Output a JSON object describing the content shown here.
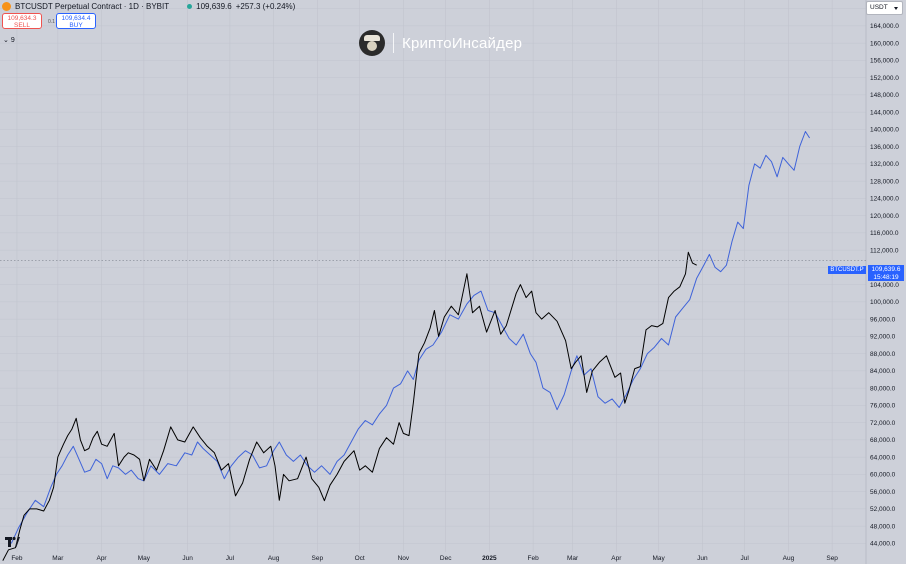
{
  "header": {
    "symbol": "BTCUSDT Perpetual Contract · 1D · BYBIT",
    "last_price": "109,639.6",
    "change": "+257.3 (+0.24%)",
    "sell_price": "109,634.3",
    "sell_label": "SELL",
    "buy_price": "109,634.4",
    "buy_label": "BUY",
    "spread": "0.1",
    "indicator_count": "9"
  },
  "watermark": {
    "text": "КриптоИнсайдер"
  },
  "currency": "USDT",
  "price_label": {
    "symbol": "BTCUSDT.P",
    "price": "109,639.6",
    "countdown": "15:48:19"
  },
  "colors": {
    "background": "#cdd0d9",
    "price_line": "#000000",
    "overlay_line": "#3f63d9",
    "accent": "#2962ff"
  },
  "icons": {
    "symbol": "bitcoin-icon",
    "status": "live-dot-icon",
    "logo": "tradingview-logo-icon"
  },
  "chart_data": {
    "type": "line",
    "y_axis": {
      "position": "right",
      "range": [
        42000,
        170000
      ],
      "ticks": [
        "168,000.0",
        "164,000.0",
        "160,000.0",
        "156,000.0",
        "152,000.0",
        "148,000.0",
        "144,000.0",
        "140,000.0",
        "136,000.0",
        "132,000.0",
        "128,000.0",
        "124,000.0",
        "120,000.0",
        "116,000.0",
        "112,000.0",
        "108,000.0",
        "104,000.0",
        "100,000.0",
        "96,000.0",
        "92,000.0",
        "88,000.0",
        "84,000.0",
        "80,000.0",
        "76,000.0",
        "72,000.0",
        "68,000.0",
        "64,000.0",
        "60,000.0",
        "56,000.0",
        "52,000.0",
        "48,000.0",
        "44,000.0"
      ]
    },
    "x_axis": {
      "range": [
        "2024-01-20",
        "2025-09-25"
      ],
      "ticks": [
        {
          "label": "Feb",
          "date": "2024-02-01"
        },
        {
          "label": "Mar",
          "date": "2024-03-01"
        },
        {
          "label": "Apr",
          "date": "2024-04-01"
        },
        {
          "label": "May",
          "date": "2024-05-01"
        },
        {
          "label": "Jun",
          "date": "2024-06-01"
        },
        {
          "label": "Jul",
          "date": "2024-07-01"
        },
        {
          "label": "Aug",
          "date": "2024-08-01"
        },
        {
          "label": "Sep",
          "date": "2024-09-01"
        },
        {
          "label": "Oct",
          "date": "2024-10-01"
        },
        {
          "label": "Nov",
          "date": "2024-11-01"
        },
        {
          "label": "Dec",
          "date": "2024-12-01"
        },
        {
          "label": "2025",
          "date": "2025-01-01"
        },
        {
          "label": "Feb",
          "date": "2025-02-01"
        },
        {
          "label": "Mar",
          "date": "2025-03-01"
        },
        {
          "label": "Apr",
          "date": "2025-04-01"
        },
        {
          "label": "May",
          "date": "2025-05-01"
        },
        {
          "label": "Jun",
          "date": "2025-06-01"
        },
        {
          "label": "Jul",
          "date": "2025-07-01"
        },
        {
          "label": "Aug",
          "date": "2025-08-01"
        },
        {
          "label": "Sep",
          "date": "2025-09-01"
        }
      ]
    },
    "grid": true,
    "crosshair_value": 109639.6,
    "series": [
      {
        "color": "#000000",
        "points": [
          [
            "2024-01-22",
            40000
          ],
          [
            "2024-01-26",
            42500
          ],
          [
            "2024-01-31",
            43000
          ],
          [
            "2024-02-03",
            47000
          ],
          [
            "2024-02-06",
            50500
          ],
          [
            "2024-02-10",
            52000
          ],
          [
            "2024-02-15",
            52000
          ],
          [
            "2024-02-20",
            51500
          ],
          [
            "2024-02-24",
            54000
          ],
          [
            "2024-02-27",
            57000
          ],
          [
            "2024-03-01",
            64000
          ],
          [
            "2024-03-05",
            67000
          ],
          [
            "2024-03-08",
            69000
          ],
          [
            "2024-03-11",
            70500
          ],
          [
            "2024-03-14",
            73000
          ],
          [
            "2024-03-17",
            68000
          ],
          [
            "2024-03-20",
            65500
          ],
          [
            "2024-03-23",
            66000
          ],
          [
            "2024-03-26",
            68500
          ],
          [
            "2024-03-29",
            70000
          ],
          [
            "2024-04-01",
            67000
          ],
          [
            "2024-04-05",
            66500
          ],
          [
            "2024-04-10",
            69500
          ],
          [
            "2024-04-13",
            62000
          ],
          [
            "2024-04-17",
            64000
          ],
          [
            "2024-04-20",
            65000
          ],
          [
            "2024-04-24",
            64500
          ],
          [
            "2024-04-28",
            63500
          ],
          [
            "2024-05-01",
            58500
          ],
          [
            "2024-05-05",
            63500
          ],
          [
            "2024-05-10",
            61000
          ],
          [
            "2024-05-15",
            65500
          ],
          [
            "2024-05-20",
            71000
          ],
          [
            "2024-05-25",
            68000
          ],
          [
            "2024-05-30",
            67500
          ],
          [
            "2024-06-05",
            71000
          ],
          [
            "2024-06-10",
            68500
          ],
          [
            "2024-06-15",
            66500
          ],
          [
            "2024-06-20",
            65000
          ],
          [
            "2024-06-25",
            61000
          ],
          [
            "2024-06-30",
            62500
          ],
          [
            "2024-07-05",
            55000
          ],
          [
            "2024-07-10",
            58000
          ],
          [
            "2024-07-15",
            63500
          ],
          [
            "2024-07-20",
            67500
          ],
          [
            "2024-07-25",
            65000
          ],
          [
            "2024-07-30",
            66500
          ],
          [
            "2024-08-02",
            62000
          ],
          [
            "2024-08-05",
            54000
          ],
          [
            "2024-08-08",
            60000
          ],
          [
            "2024-08-12",
            58500
          ],
          [
            "2024-08-18",
            59000
          ],
          [
            "2024-08-24",
            64000
          ],
          [
            "2024-08-28",
            59000
          ],
          [
            "2024-09-02",
            57000
          ],
          [
            "2024-09-06",
            53900
          ],
          [
            "2024-09-10",
            57500
          ],
          [
            "2024-09-15",
            60000
          ],
          [
            "2024-09-20",
            63000
          ],
          [
            "2024-09-27",
            65500
          ],
          [
            "2024-10-01",
            61000
          ],
          [
            "2024-10-05",
            62000
          ],
          [
            "2024-10-10",
            60500
          ],
          [
            "2024-10-15",
            66000
          ],
          [
            "2024-10-20",
            68500
          ],
          [
            "2024-10-25",
            67000
          ],
          [
            "2024-10-29",
            72000
          ],
          [
            "2024-11-01",
            69500
          ],
          [
            "2024-11-05",
            69000
          ],
          [
            "2024-11-08",
            76500
          ],
          [
            "2024-11-12",
            88000
          ],
          [
            "2024-11-16",
            90500
          ],
          [
            "2024-11-20",
            94000
          ],
          [
            "2024-11-23",
            98000
          ],
          [
            "2024-11-26",
            92000
          ],
          [
            "2024-11-30",
            96500
          ],
          [
            "2024-12-05",
            99000
          ],
          [
            "2024-12-10",
            97000
          ],
          [
            "2024-12-16",
            106500
          ],
          [
            "2024-12-20",
            97500
          ],
          [
            "2024-12-25",
            99000
          ],
          [
            "2024-12-30",
            93000
          ],
          [
            "2025-01-05",
            98000
          ],
          [
            "2025-01-09",
            92500
          ],
          [
            "2025-01-13",
            94500
          ],
          [
            "2025-01-20",
            102000
          ],
          [
            "2025-01-23",
            104000
          ],
          [
            "2025-01-27",
            101000
          ],
          [
            "2025-01-31",
            102500
          ],
          [
            "2025-02-03",
            97500
          ],
          [
            "2025-02-07",
            96000
          ],
          [
            "2025-02-12",
            97500
          ],
          [
            "2025-02-18",
            95500
          ],
          [
            "2025-02-24",
            91000
          ],
          [
            "2025-02-28",
            84500
          ],
          [
            "2025-03-03",
            86000
          ],
          [
            "2025-03-07",
            87500
          ],
          [
            "2025-03-11",
            79000
          ],
          [
            "2025-03-15",
            84000
          ],
          [
            "2025-03-20",
            86000
          ],
          [
            "2025-03-25",
            87500
          ],
          [
            "2025-03-31",
            82500
          ],
          [
            "2025-04-04",
            83500
          ],
          [
            "2025-04-07",
            76500
          ],
          [
            "2025-04-10",
            79500
          ],
          [
            "2025-04-14",
            84500
          ],
          [
            "2025-04-18",
            85000
          ],
          [
            "2025-04-22",
            93500
          ],
          [
            "2025-04-26",
            94500
          ],
          [
            "2025-04-30",
            94200
          ],
          [
            "2025-05-04",
            95000
          ],
          [
            "2025-05-08",
            101000
          ],
          [
            "2025-05-12",
            102500
          ],
          [
            "2025-05-16",
            103500
          ],
          [
            "2025-05-20",
            106500
          ],
          [
            "2025-05-22",
            111500
          ],
          [
            "2025-05-25",
            109000
          ],
          [
            "2025-05-28",
            108500
          ]
        ]
      },
      {
        "color": "#3f63d9",
        "points": [
          [
            "2024-01-28",
            44000
          ],
          [
            "2024-02-02",
            47500
          ],
          [
            "2024-02-08",
            51000
          ],
          [
            "2024-02-14",
            54000
          ],
          [
            "2024-02-20",
            52500
          ],
          [
            "2024-02-25",
            57000
          ],
          [
            "2024-02-29",
            60000
          ],
          [
            "2024-03-04",
            62000
          ],
          [
            "2024-03-08",
            64500
          ],
          [
            "2024-03-12",
            66500
          ],
          [
            "2024-03-16",
            63500
          ],
          [
            "2024-03-20",
            60500
          ],
          [
            "2024-03-24",
            61000
          ],
          [
            "2024-03-28",
            63500
          ],
          [
            "2024-04-01",
            62500
          ],
          [
            "2024-04-05",
            59000
          ],
          [
            "2024-04-09",
            62000
          ],
          [
            "2024-04-13",
            61500
          ],
          [
            "2024-04-18",
            60000
          ],
          [
            "2024-04-22",
            61000
          ],
          [
            "2024-04-27",
            59000
          ],
          [
            "2024-05-01",
            58500
          ],
          [
            "2024-05-06",
            62000
          ],
          [
            "2024-05-12",
            60000
          ],
          [
            "2024-05-18",
            62500
          ],
          [
            "2024-05-24",
            62000
          ],
          [
            "2024-05-30",
            65000
          ],
          [
            "2024-06-04",
            64500
          ],
          [
            "2024-06-08",
            67500
          ],
          [
            "2024-06-12",
            66000
          ],
          [
            "2024-06-17",
            64500
          ],
          [
            "2024-06-22",
            63000
          ],
          [
            "2024-06-27",
            59000
          ],
          [
            "2024-07-02",
            62000
          ],
          [
            "2024-07-07",
            64000
          ],
          [
            "2024-07-12",
            65500
          ],
          [
            "2024-07-17",
            64500
          ],
          [
            "2024-07-22",
            61500
          ],
          [
            "2024-07-27",
            62000
          ],
          [
            "2024-08-01",
            65500
          ],
          [
            "2024-08-05",
            67500
          ],
          [
            "2024-08-10",
            64500
          ],
          [
            "2024-08-15",
            63000
          ],
          [
            "2024-08-20",
            64500
          ],
          [
            "2024-08-25",
            62000
          ],
          [
            "2024-08-30",
            60500
          ],
          [
            "2024-09-04",
            62000
          ],
          [
            "2024-09-10",
            60000
          ],
          [
            "2024-09-15",
            63000
          ],
          [
            "2024-09-20",
            64500
          ],
          [
            "2024-09-25",
            67500
          ],
          [
            "2024-09-30",
            70500
          ],
          [
            "2024-10-05",
            72500
          ],
          [
            "2024-10-10",
            71500
          ],
          [
            "2024-10-15",
            74000
          ],
          [
            "2024-10-20",
            76000
          ],
          [
            "2024-10-25",
            80000
          ],
          [
            "2024-10-30",
            81000
          ],
          [
            "2024-11-04",
            84000
          ],
          [
            "2024-11-08",
            82000
          ],
          [
            "2024-11-12",
            86500
          ],
          [
            "2024-11-17",
            89000
          ],
          [
            "2024-11-22",
            90000
          ],
          [
            "2024-11-28",
            93000
          ],
          [
            "2024-12-04",
            97000
          ],
          [
            "2024-12-10",
            96000
          ],
          [
            "2024-12-16",
            99500
          ],
          [
            "2024-12-21",
            101500
          ],
          [
            "2024-12-26",
            102500
          ],
          [
            "2024-12-31",
            98000
          ],
          [
            "2025-01-05",
            97500
          ],
          [
            "2025-01-10",
            94500
          ],
          [
            "2025-01-15",
            91500
          ],
          [
            "2025-01-20",
            90000
          ],
          [
            "2025-01-25",
            92500
          ],
          [
            "2025-01-30",
            88000
          ],
          [
            "2025-02-03",
            86000
          ],
          [
            "2025-02-08",
            80000
          ],
          [
            "2025-02-13",
            79000
          ],
          [
            "2025-02-18",
            75000
          ],
          [
            "2025-02-23",
            78500
          ],
          [
            "2025-02-28",
            84000
          ],
          [
            "2025-03-04",
            87500
          ],
          [
            "2025-03-09",
            83000
          ],
          [
            "2025-03-14",
            84500
          ],
          [
            "2025-03-19",
            78000
          ],
          [
            "2025-03-24",
            76500
          ],
          [
            "2025-03-29",
            77500
          ],
          [
            "2025-04-03",
            75500
          ],
          [
            "2025-04-08",
            78500
          ],
          [
            "2025-04-13",
            82000
          ],
          [
            "2025-04-18",
            84500
          ],
          [
            "2025-04-23",
            88000
          ],
          [
            "2025-04-28",
            89500
          ],
          [
            "2025-05-03",
            91500
          ],
          [
            "2025-05-08",
            90000
          ],
          [
            "2025-05-13",
            96500
          ],
          [
            "2025-05-18",
            98500
          ],
          [
            "2025-05-23",
            100500
          ],
          [
            "2025-05-28",
            105500
          ],
          [
            "2025-06-02",
            108500
          ],
          [
            "2025-06-06",
            111000
          ],
          [
            "2025-06-10",
            108000
          ],
          [
            "2025-06-14",
            107000
          ],
          [
            "2025-06-18",
            108500
          ],
          [
            "2025-06-22",
            114000
          ],
          [
            "2025-06-26",
            118500
          ],
          [
            "2025-06-30",
            117000
          ],
          [
            "2025-07-04",
            127000
          ],
          [
            "2025-07-08",
            132000
          ],
          [
            "2025-07-12",
            131000
          ],
          [
            "2025-07-16",
            134000
          ],
          [
            "2025-07-20",
            132500
          ],
          [
            "2025-07-24",
            129000
          ],
          [
            "2025-07-28",
            133500
          ],
          [
            "2025-08-01",
            132000
          ],
          [
            "2025-08-05",
            130500
          ],
          [
            "2025-08-09",
            136000
          ],
          [
            "2025-08-13",
            139500
          ],
          [
            "2025-08-16",
            138000
          ]
        ]
      }
    ]
  }
}
